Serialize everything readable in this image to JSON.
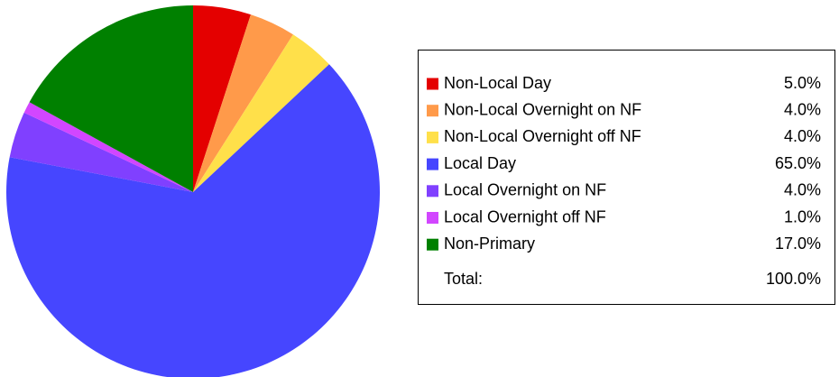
{
  "chart_data": {
    "type": "pie",
    "categories": [
      "Non-Local Day",
      "Non-Local Overnight on NF",
      "Non-Local Overnight off NF",
      "Local Day",
      "Local Overnight on NF",
      "Local Overnight off NF",
      "Non-Primary"
    ],
    "values": [
      5,
      4,
      4,
      65,
      4,
      1,
      17
    ],
    "value_labels": [
      "5.0%",
      "4.0%",
      "4.0%",
      "65.0%",
      "4.0%",
      "1.0%",
      "17.0%"
    ],
    "colors": [
      "#e40000",
      "#ff9a4a",
      "#ffe04a",
      "#4646ff",
      "#8040ff",
      "#d246ff",
      "#008000"
    ],
    "total_label": "Total:",
    "total": {
      "value": 100,
      "label": "100.0%"
    }
  }
}
